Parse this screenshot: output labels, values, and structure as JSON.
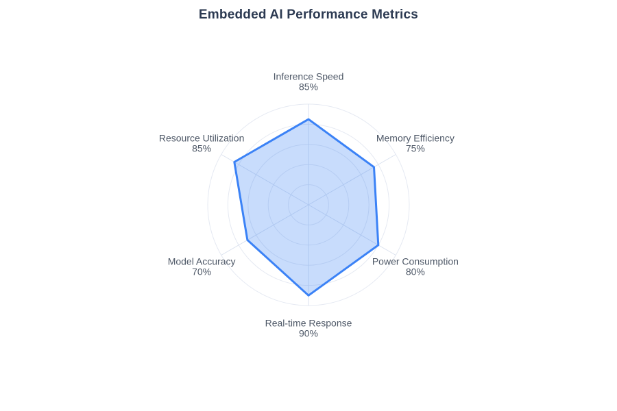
{
  "chart_data": {
    "type": "radar",
    "title": "Embedded AI Performance Metrics",
    "categories": [
      "Inference Speed",
      "Memory Efficiency",
      "Power Consumption",
      "Real-time Response",
      "Model Accuracy",
      "Resource Utilization"
    ],
    "values": [
      85,
      75,
      80,
      90,
      70,
      85
    ],
    "value_suffix": "%",
    "axis_max": 100,
    "grid_rings": [
      20,
      40,
      60,
      80,
      100
    ],
    "grid_shape": "circle",
    "legend": "none",
    "colors": {
      "series_stroke": "#3b82f6",
      "series_fill": "rgba(59,130,246,0.28)",
      "ring_grid": "#e5e9f2",
      "spoke_grid": "#dbe2ef",
      "axis_label": "#4d5766",
      "title": "#2c3a52"
    }
  }
}
